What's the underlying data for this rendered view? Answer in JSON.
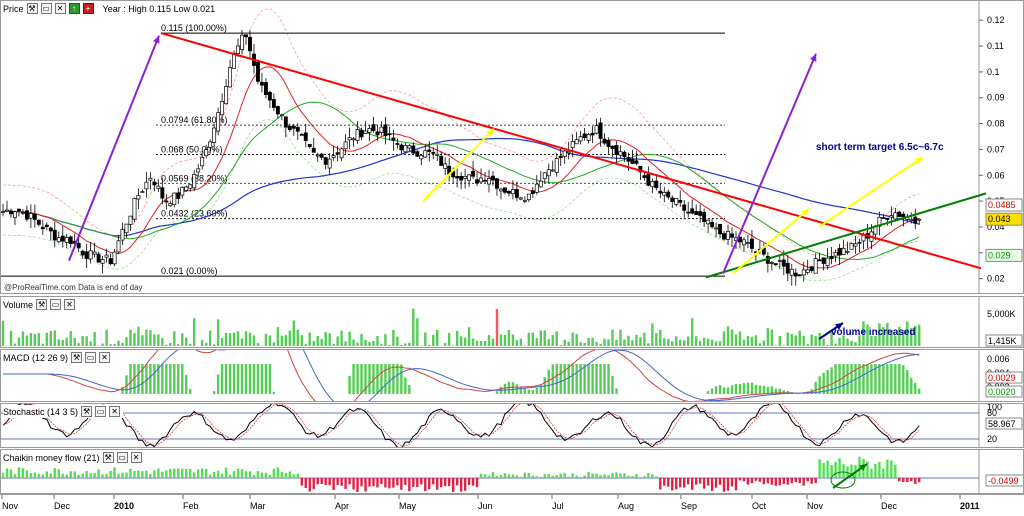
{
  "price_panel": {
    "title": "Price",
    "info": "Year : High 0.115 Low 0.021",
    "watermark": "@ProRealTime.com  Data is end of day",
    "annotation": "short term target 6.5c~6.7c",
    "fib_labels": [
      "0.115 (100.00%)",
      "0.0794 (61.80%)",
      "0.068 (50.00%)",
      "0.0569 (38.20%)",
      "0.0432 (23.60%)",
      "0.021 (0.00%)"
    ],
    "y_ticks": [
      "0.12",
      "0.11",
      "0.1",
      "0.09",
      "0.08",
      "0.07",
      "0.06",
      "0.05",
      "0.04",
      "0.03",
      "0.02"
    ],
    "badges": [
      {
        "text": "0.0485",
        "bg": "#ffffff",
        "fg": "#cc0000"
      },
      {
        "text": "0.043",
        "bg": "#ffe000",
        "fg": "#000000"
      },
      {
        "text": "0.029",
        "bg": "#e8ffe8",
        "fg": "#009900"
      }
    ]
  },
  "volume_panel": {
    "title": "Volume",
    "annotation": "volume increased",
    "y_ticks": [
      "5,000K",
      "0"
    ],
    "badge": "1,415K"
  },
  "macd_panel": {
    "title": "MACD (12 26 9)",
    "y_ticks": [
      "0.006",
      "0.004",
      "0.002"
    ],
    "badges": [
      "0.0029",
      "0.0020"
    ]
  },
  "stoch_panel": {
    "title": "Stochastic (14 3 5)",
    "y_ticks": [
      "100",
      "80",
      "20"
    ],
    "badge": "58.967"
  },
  "cmf_panel": {
    "title": "Chaikin money flow (21)",
    "badge": "-0.0499"
  },
  "x_axis": {
    "labels": [
      "Nov",
      "Dec",
      "2010",
      "Feb",
      "Mar",
      "Apr",
      "May",
      "Jun",
      "Jul",
      "Aug",
      "Sep",
      "Oct",
      "Nov",
      "Dec",
      "2011"
    ]
  },
  "colors": {
    "up": "#ffffff",
    "down": "#000000",
    "resistance": "#ff0000",
    "support": "#008000",
    "arrow_purple": "#8b1fd6",
    "arrow_yellow": "#ffff00",
    "annotation": "#00008b"
  },
  "chart_data": {
    "type": "candlestick",
    "title": "Price",
    "ylim": [
      0.016,
      0.122
    ],
    "x_labels": [
      "Nov",
      "Dec",
      "2010",
      "Feb",
      "Mar",
      "Apr",
      "May",
      "Jun",
      "Jul",
      "Aug",
      "Sep",
      "Oct",
      "Nov",
      "Dec",
      "2011"
    ],
    "year_high": 0.115,
    "year_low": 0.021,
    "fibonacci": [
      0.115,
      0.0794,
      0.068,
      0.0569,
      0.0432,
      0.021
    ],
    "close_path": [
      0.046,
      0.047,
      0.044,
      0.04,
      0.036,
      0.035,
      0.03,
      0.028,
      0.027,
      0.04,
      0.052,
      0.06,
      0.05,
      0.052,
      0.058,
      0.068,
      0.085,
      0.105,
      0.115,
      0.095,
      0.088,
      0.08,
      0.075,
      0.068,
      0.066,
      0.07,
      0.075,
      0.078,
      0.077,
      0.073,
      0.07,
      0.069,
      0.068,
      0.062,
      0.06,
      0.058,
      0.06,
      0.055,
      0.053,
      0.052,
      0.06,
      0.065,
      0.07,
      0.075,
      0.078,
      0.072,
      0.068,
      0.063,
      0.057,
      0.052,
      0.049,
      0.045,
      0.042,
      0.038,
      0.036,
      0.034,
      0.03,
      0.027,
      0.024,
      0.022,
      0.025,
      0.028,
      0.03,
      0.032,
      0.036,
      0.042,
      0.046,
      0.044,
      0.043
    ],
    "last_close": 0.043,
    "target_low": 0.065,
    "target_high": 0.067
  }
}
